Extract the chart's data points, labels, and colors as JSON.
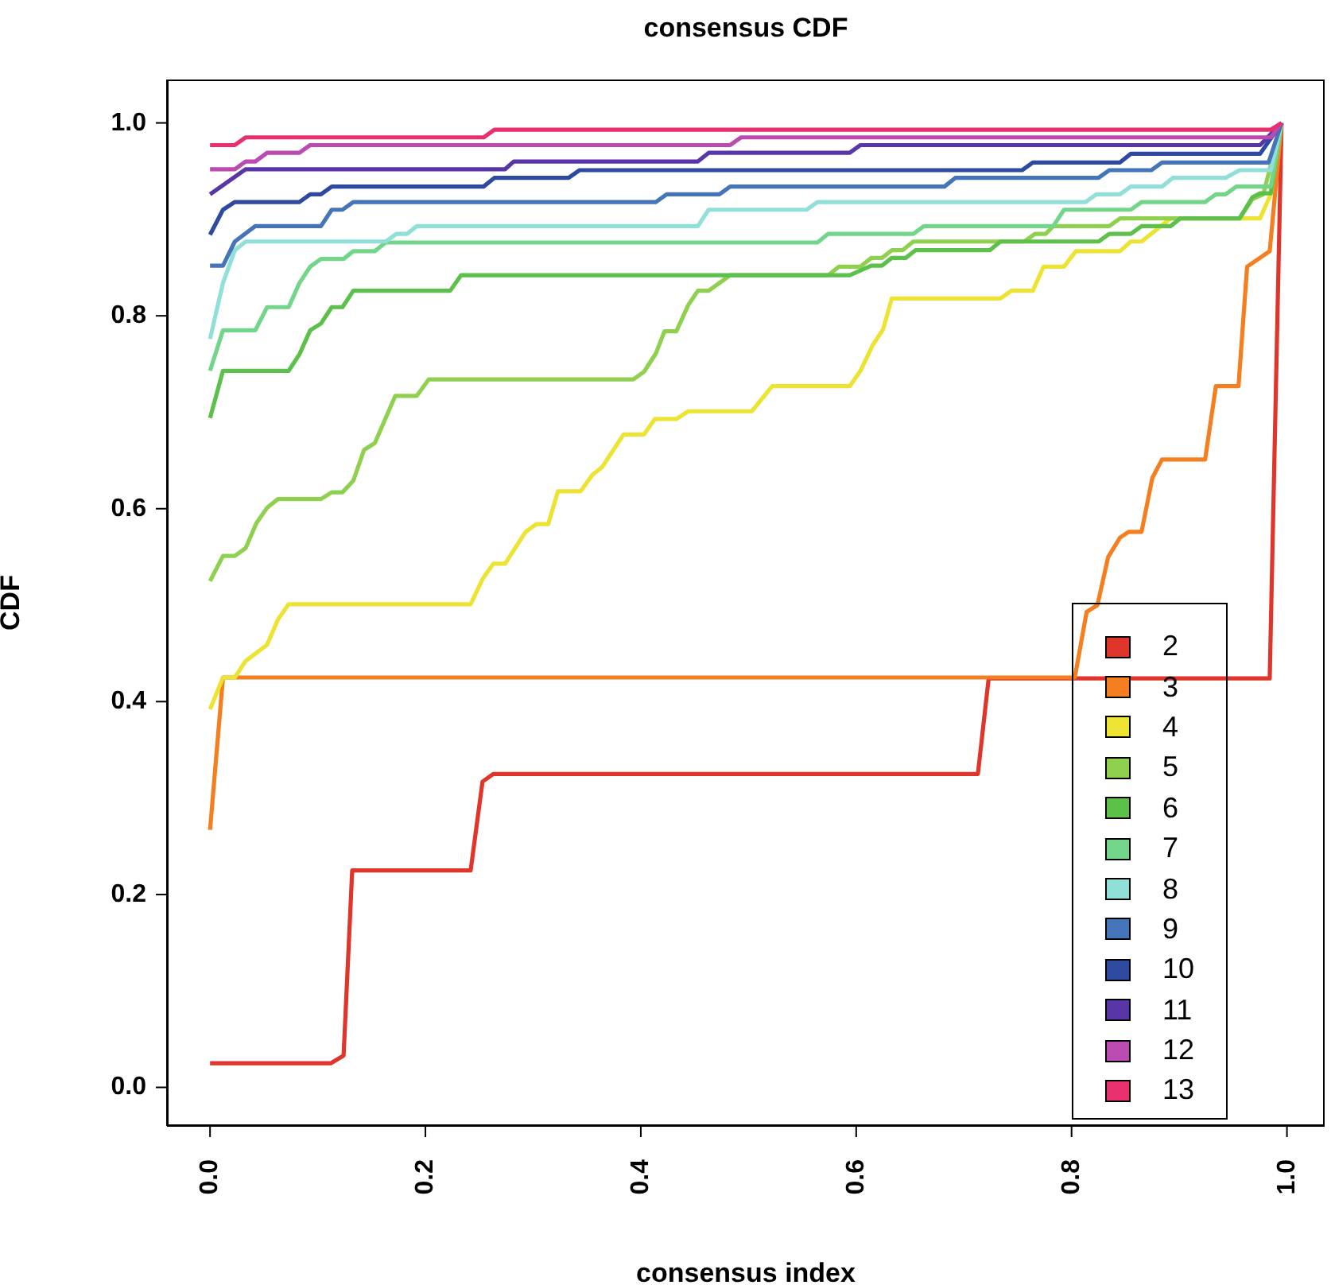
{
  "chart_data": {
    "type": "line",
    "title": "consensus CDF",
    "xlabel": "consensus index",
    "ylabel": "CDF",
    "xlim": [
      -0.04,
      1.035
    ],
    "ylim": [
      -0.04,
      1.045
    ],
    "xticks": [
      {
        "value": 0,
        "label": "0.0"
      },
      {
        "value": 0.2,
        "label": "0.2"
      },
      {
        "value": 0.4,
        "label": "0.4"
      },
      {
        "value": 0.6,
        "label": "0.6"
      },
      {
        "value": 0.8,
        "label": "0.8"
      },
      {
        "value": 1,
        "label": "1.0"
      }
    ],
    "yticks": [
      {
        "value": 0,
        "label": "0.0"
      },
      {
        "value": 0.2,
        "label": "0.2"
      },
      {
        "value": 0.4,
        "label": "0.4"
      },
      {
        "value": 0.6,
        "label": "0.6"
      },
      {
        "value": 0.8,
        "label": "0.8"
      },
      {
        "value": 1,
        "label": "1.0"
      }
    ],
    "legend": "bottom right",
    "marker": "none",
    "grid": false,
    "series": [
      {
        "name": "2",
        "color": "#e0352a",
        "x": [
          0,
          0.112,
          0.124,
          0.132,
          0.242,
          0.253,
          0.263,
          0.713,
          0.723,
          0.984,
          0.995
        ],
        "values": [
          0.025,
          0.025,
          0.033,
          0.225,
          0.225,
          0.317,
          0.325,
          0.325,
          0.424,
          0.424,
          1.0
        ]
      },
      {
        "name": "3",
        "color": "#f47f20",
        "x": [
          0,
          0.012,
          0.803,
          0.814,
          0.824,
          0.834,
          0.845,
          0.853,
          0.865,
          0.875,
          0.884,
          0.924,
          0.934,
          0.955,
          0.963,
          0.984,
          0.995
        ],
        "values": [
          0.267,
          0.425,
          0.425,
          0.493,
          0.5,
          0.55,
          0.57,
          0.576,
          0.576,
          0.632,
          0.651,
          0.651,
          0.727,
          0.727,
          0.851,
          0.867,
          1.0
        ]
      },
      {
        "name": "4",
        "color": "#ece332",
        "x": [
          0,
          0.012,
          0.023,
          0.033,
          0.053,
          0.063,
          0.073,
          0.242,
          0.253,
          0.263,
          0.274,
          0.293,
          0.303,
          0.314,
          0.323,
          0.344,
          0.355,
          0.364,
          0.384,
          0.403,
          0.413,
          0.433,
          0.444,
          0.503,
          0.522,
          0.594,
          0.604,
          0.615,
          0.625,
          0.633,
          0.734,
          0.744,
          0.764,
          0.774,
          0.793,
          0.804,
          0.845,
          0.855,
          0.865,
          0.892,
          0.975,
          0.985,
          0.995
        ],
        "values": [
          0.392,
          0.425,
          0.425,
          0.442,
          0.459,
          0.485,
          0.501,
          0.501,
          0.527,
          0.543,
          0.543,
          0.576,
          0.584,
          0.584,
          0.618,
          0.618,
          0.635,
          0.643,
          0.677,
          0.677,
          0.693,
          0.693,
          0.701,
          0.701,
          0.727,
          0.727,
          0.743,
          0.769,
          0.786,
          0.818,
          0.818,
          0.826,
          0.826,
          0.851,
          0.851,
          0.867,
          0.867,
          0.877,
          0.877,
          0.901,
          0.901,
          0.926,
          1.0
        ]
      },
      {
        "name": "5",
        "color": "#8fd14f",
        "x": [
          0,
          0.012,
          0.023,
          0.033,
          0.043,
          0.053,
          0.063,
          0.103,
          0.113,
          0.123,
          0.133,
          0.143,
          0.153,
          0.172,
          0.192,
          0.203,
          0.393,
          0.403,
          0.414,
          0.422,
          0.433,
          0.444,
          0.453,
          0.463,
          0.483,
          0.574,
          0.584,
          0.604,
          0.614,
          0.624,
          0.633,
          0.643,
          0.653,
          0.756,
          0.766,
          0.776,
          0.783,
          0.835,
          0.845,
          0.956,
          0.968,
          0.978,
          0.995
        ],
        "values": [
          0.525,
          0.551,
          0.551,
          0.559,
          0.585,
          0.601,
          0.61,
          0.61,
          0.617,
          0.617,
          0.629,
          0.661,
          0.668,
          0.717,
          0.717,
          0.734,
          0.734,
          0.742,
          0.761,
          0.784,
          0.784,
          0.811,
          0.826,
          0.826,
          0.842,
          0.842,
          0.851,
          0.851,
          0.86,
          0.86,
          0.868,
          0.868,
          0.877,
          0.877,
          0.885,
          0.885,
          0.893,
          0.893,
          0.901,
          0.901,
          0.921,
          0.926,
          1.0
        ]
      },
      {
        "name": "6",
        "color": "#5dc04a",
        "x": [
          0,
          0.012,
          0.073,
          0.083,
          0.093,
          0.103,
          0.113,
          0.123,
          0.133,
          0.223,
          0.233,
          0.594,
          0.614,
          0.624,
          0.633,
          0.646,
          0.655,
          0.724,
          0.734,
          0.825,
          0.835,
          0.855,
          0.865,
          0.892,
          0.901,
          0.956,
          0.968,
          0.975,
          0.985,
          0.995
        ],
        "values": [
          0.694,
          0.743,
          0.743,
          0.76,
          0.785,
          0.792,
          0.809,
          0.809,
          0.826,
          0.826,
          0.842,
          0.842,
          0.852,
          0.852,
          0.86,
          0.86,
          0.868,
          0.868,
          0.877,
          0.877,
          0.885,
          0.885,
          0.893,
          0.893,
          0.901,
          0.901,
          0.923,
          0.927,
          0.927,
          1.0
        ]
      },
      {
        "name": "7",
        "color": "#72d58a",
        "x": [
          0,
          0.012,
          0.042,
          0.053,
          0.073,
          0.083,
          0.093,
          0.103,
          0.124,
          0.133,
          0.153,
          0.163,
          0.564,
          0.574,
          0.653,
          0.663,
          0.783,
          0.793,
          0.855,
          0.865,
          0.924,
          0.934,
          0.943,
          0.953,
          0.985,
          0.995
        ],
        "values": [
          0.743,
          0.785,
          0.785,
          0.809,
          0.809,
          0.834,
          0.851,
          0.859,
          0.859,
          0.867,
          0.867,
          0.876,
          0.876,
          0.885,
          0.885,
          0.893,
          0.893,
          0.91,
          0.91,
          0.918,
          0.918,
          0.926,
          0.926,
          0.934,
          0.934,
          1.0
        ]
      },
      {
        "name": "8",
        "color": "#90e0d9",
        "x": [
          0,
          0.012,
          0.023,
          0.033,
          0.163,
          0.173,
          0.183,
          0.192,
          0.453,
          0.463,
          0.554,
          0.564,
          0.813,
          0.823,
          0.845,
          0.855,
          0.884,
          0.894,
          0.943,
          0.956,
          0.985,
          0.995
        ],
        "values": [
          0.776,
          0.834,
          0.868,
          0.877,
          0.877,
          0.885,
          0.885,
          0.893,
          0.893,
          0.91,
          0.91,
          0.918,
          0.918,
          0.926,
          0.926,
          0.934,
          0.934,
          0.943,
          0.943,
          0.951,
          0.951,
          1.0
        ]
      },
      {
        "name": "9",
        "color": "#4575b9",
        "x": [
          0,
          0.012,
          0.023,
          0.042,
          0.103,
          0.113,
          0.123,
          0.133,
          0.414,
          0.424,
          0.473,
          0.483,
          0.682,
          0.692,
          0.825,
          0.835,
          0.874,
          0.884,
          0.983,
          0.995
        ],
        "values": [
          0.852,
          0.852,
          0.877,
          0.893,
          0.893,
          0.91,
          0.91,
          0.918,
          0.918,
          0.926,
          0.926,
          0.934,
          0.934,
          0.943,
          0.943,
          0.951,
          0.951,
          0.959,
          0.959,
          1.0
        ]
      },
      {
        "name": "10",
        "color": "#2e4aa0",
        "x": [
          0,
          0.012,
          0.023,
          0.083,
          0.093,
          0.103,
          0.113,
          0.254,
          0.264,
          0.333,
          0.343,
          0.754,
          0.764,
          0.845,
          0.855,
          0.975,
          0.995
        ],
        "values": [
          0.884,
          0.91,
          0.918,
          0.918,
          0.926,
          0.926,
          0.934,
          0.934,
          0.943,
          0.943,
          0.951,
          0.951,
          0.959,
          0.959,
          0.968,
          0.968,
          1.0
        ]
      },
      {
        "name": "11",
        "color": "#5936a8",
        "x": [
          0,
          0.033,
          0.274,
          0.282,
          0.453,
          0.463,
          0.594,
          0.604,
          0.975,
          0.995
        ],
        "values": [
          0.926,
          0.952,
          0.952,
          0.96,
          0.96,
          0.969,
          0.969,
          0.977,
          0.977,
          1.0
        ]
      },
      {
        "name": "12",
        "color": "#bb4bb1",
        "x": [
          0,
          0.023,
          0.033,
          0.042,
          0.053,
          0.083,
          0.093,
          0.483,
          0.493,
          0.985,
          0.995
        ],
        "values": [
          0.952,
          0.952,
          0.96,
          0.96,
          0.969,
          0.969,
          0.977,
          0.977,
          0.985,
          0.985,
          1.0
        ]
      },
      {
        "name": "13",
        "color": "#e8306f",
        "x": [
          0,
          0.023,
          0.033,
          0.254,
          0.264,
          0.985,
          0.995
        ],
        "values": [
          0.977,
          0.977,
          0.985,
          0.985,
          0.993,
          0.993,
          1.0
        ]
      }
    ]
  }
}
